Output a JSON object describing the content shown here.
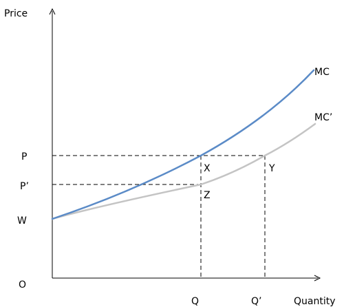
{
  "axes": {
    "y_label": "Price",
    "x_label": "Quantity",
    "origin_label": "O"
  },
  "curves": {
    "mc": {
      "label": "MC",
      "color": "#5b8bc7"
    },
    "mc_prime": {
      "label": "MC’",
      "color": "#c4c4c4"
    }
  },
  "price_labels": {
    "p": "P",
    "p_prime": "P’",
    "w": "W"
  },
  "quantity_labels": {
    "q": "Q",
    "q_prime": "Q’"
  },
  "points": {
    "x": "X",
    "y": "Y",
    "z": "Z"
  }
}
